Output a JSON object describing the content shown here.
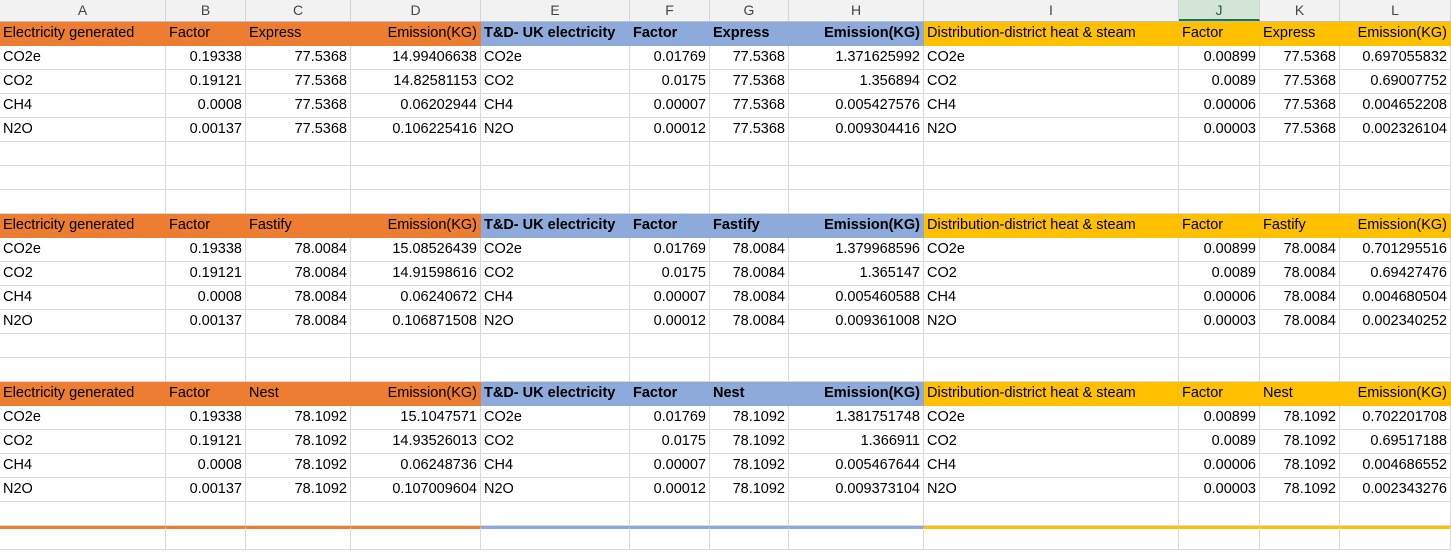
{
  "columns": [
    "A",
    "B",
    "C",
    "D",
    "E",
    "F",
    "G",
    "H",
    "I",
    "J",
    "K",
    "L"
  ],
  "selected_column": "J",
  "colors": {
    "orange": "#ed7d31",
    "blue": "#8eaadb",
    "gold": "#ffc000"
  },
  "blocks": [
    {
      "header": [
        "Electricity generated",
        "Factor",
        "Express",
        "Emission(KG)",
        "T&D- UK electricity",
        "Factor",
        "Express",
        "Emission(KG)",
        "Distribution-district heat & steam",
        "Factor",
        "Express",
        "Emission(KG)"
      ],
      "rows": [
        [
          "CO2e",
          "0.19338",
          "77.5368",
          "14.99406638",
          "CO2e",
          "0.01769",
          "77.5368",
          "1.371625992",
          "CO2e",
          "0.00899",
          "77.5368",
          "0.697055832"
        ],
        [
          "CO2",
          "0.19121",
          "77.5368",
          "14.82581153",
          "CO2",
          "0.0175",
          "77.5368",
          "1.356894",
          "CO2",
          "0.0089",
          "77.5368",
          "0.69007752"
        ],
        [
          "CH4",
          "0.0008",
          "77.5368",
          "0.06202944",
          "CH4",
          "0.00007",
          "77.5368",
          "0.005427576",
          "CH4",
          "0.00006",
          "77.5368",
          "0.004652208"
        ],
        [
          "N2O",
          "0.00137",
          "77.5368",
          "0.106225416",
          "N2O",
          "0.00012",
          "77.5368",
          "0.009304416",
          "N2O",
          "0.00003",
          "77.5368",
          "0.002326104"
        ]
      ]
    },
    {
      "header": [
        "Electricity generated",
        "Factor",
        "Fastify",
        "Emission(KG)",
        "T&D- UK electricity",
        "Factor",
        "Fastify",
        "Emission(KG)",
        "Distribution-district heat & steam",
        "Factor",
        "Fastify",
        "Emission(KG)"
      ],
      "rows": [
        [
          "CO2e",
          "0.19338",
          "78.0084",
          "15.08526439",
          "CO2e",
          "0.01769",
          "78.0084",
          "1.379968596",
          "CO2e",
          "0.00899",
          "78.0084",
          "0.701295516"
        ],
        [
          "CO2",
          "0.19121",
          "78.0084",
          "14.91598616",
          "CO2",
          "0.0175",
          "78.0084",
          "1.365147",
          "CO2",
          "0.0089",
          "78.0084",
          "0.69427476"
        ],
        [
          "CH4",
          "0.0008",
          "78.0084",
          "0.06240672",
          "CH4",
          "0.00007",
          "78.0084",
          "0.005460588",
          "CH4",
          "0.00006",
          "78.0084",
          "0.004680504"
        ],
        [
          "N2O",
          "0.00137",
          "78.0084",
          "0.106871508",
          "N2O",
          "0.00012",
          "78.0084",
          "0.009361008",
          "N2O",
          "0.00003",
          "78.0084",
          "0.002340252"
        ]
      ]
    },
    {
      "header": [
        "Electricity generated",
        "Factor",
        "Nest",
        "Emission(KG)",
        "T&D- UK electricity",
        "Factor",
        "Nest",
        "Emission(KG)",
        "Distribution-district heat & steam",
        "Factor",
        "Nest",
        "Emission(KG)"
      ],
      "rows": [
        [
          "CO2e",
          "0.19338",
          "78.1092",
          "15.1047571",
          "CO2e",
          "0.01769",
          "78.1092",
          "1.381751748",
          "CO2e",
          "0.00899",
          "78.1092",
          "0.702201708"
        ],
        [
          "CO2",
          "0.19121",
          "78.1092",
          "14.93526013",
          "CO2",
          "0.0175",
          "78.1092",
          "1.366911",
          "CO2",
          "0.0089",
          "78.1092",
          "0.69517188"
        ],
        [
          "CH4",
          "0.0008",
          "78.1092",
          "0.06248736",
          "CH4",
          "0.00007",
          "78.1092",
          "0.005467644",
          "CH4",
          "0.00006",
          "78.1092",
          "0.004686552"
        ],
        [
          "N2O",
          "0.00137",
          "78.1092",
          "0.107009604",
          "N2O",
          "0.00012",
          "78.1092",
          "0.009373104",
          "N2O",
          "0.00003",
          "78.1092",
          "0.002343276"
        ]
      ]
    }
  ]
}
